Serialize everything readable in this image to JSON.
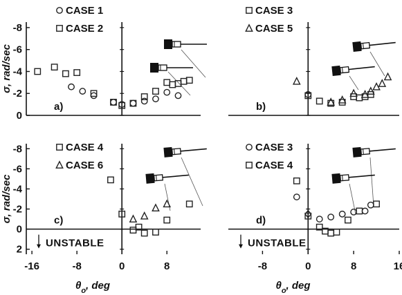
{
  "chart_data": [
    {
      "panel": "a)",
      "type": "scatter",
      "xlabel": "",
      "ylabel": "σ, rad/sec",
      "xticks": [],
      "yticks": [
        "-8",
        "-6",
        "-4",
        "-2",
        "0"
      ],
      "xlim": [
        -17,
        14
      ],
      "ylim": [
        0,
        -8.5
      ],
      "vline_x": 0,
      "legend": [
        "CASE 1",
        "CASE 2"
      ],
      "series": [
        {
          "name": "CASE 1",
          "marker": "circle",
          "x": [
            -9,
            -7,
            -5,
            -1.5,
            0,
            2,
            4,
            6,
            8,
            10
          ],
          "y": [
            -2.6,
            -2.2,
            -1.8,
            -1.2,
            -1.0,
            -1.1,
            -1.3,
            -1.5,
            -2.1,
            -1.8
          ]
        },
        {
          "name": "CASE 2",
          "marker": "square",
          "x": [
            -15,
            -12,
            -10,
            -8,
            -5,
            -1.5,
            0,
            2,
            4,
            6,
            8,
            9,
            10,
            11,
            12
          ],
          "y": [
            -4.0,
            -4.4,
            -3.8,
            -3.9,
            -2.0,
            -1.2,
            -0.9,
            -1.1,
            -1.7,
            -2.2,
            -3.0,
            -2.8,
            -2.9,
            -3.1,
            -3.2
          ]
        }
      ]
    },
    {
      "panel": "b)",
      "type": "scatter",
      "xlabel": "",
      "ylabel": "",
      "xticks": [],
      "yticks": [],
      "xlim": [
        -14,
        16
      ],
      "ylim": [
        0,
        -8.5
      ],
      "vline_x": 0,
      "legend": [
        "CASE 3",
        "CASE 5"
      ],
      "series": [
        {
          "name": "CASE 3",
          "marker": "square",
          "x": [
            0,
            2,
            4,
            6,
            8,
            9,
            10,
            11
          ],
          "y": [
            -1.8,
            -1.3,
            -1.1,
            -1.2,
            -1.7,
            -1.6,
            -1.7,
            -1.9
          ]
        },
        {
          "name": "CASE 5",
          "marker": "triangle",
          "x": [
            -2,
            4,
            6,
            8,
            10,
            11,
            12,
            13,
            14
          ],
          "y": [
            -3.1,
            -1.2,
            -1.4,
            -2.0,
            -1.9,
            -2.2,
            -2.6,
            -2.9,
            -3.5
          ]
        },
        {
          "name": "",
          "marker": "circle",
          "x": [
            0
          ],
          "y": [
            -1.9
          ]
        }
      ]
    },
    {
      "panel": "c)",
      "type": "scatter",
      "xlabel": "θ_o, deg",
      "ylabel": "σ, rad/sec",
      "xticks": [
        "-16",
        "-8",
        "0",
        "8"
      ],
      "yticks": [
        "-8",
        "-6",
        "-4",
        "-2",
        "0",
        "2"
      ],
      "xlim": [
        -17,
        14
      ],
      "ylim": [
        2.5,
        -8.5
      ],
      "vline_x": 0,
      "legend": [
        "CASE 4",
        "CASE 6"
      ],
      "annotation": "UNSTABLE",
      "series": [
        {
          "name": "CASE 4",
          "marker": "square",
          "x": [
            -2,
            0,
            2,
            3,
            4,
            6,
            8,
            12
          ],
          "y": [
            -4.9,
            -1.5,
            0.1,
            -0.2,
            0.4,
            0.3,
            -0.9,
            -2.5
          ]
        },
        {
          "name": "CASE 6",
          "marker": "triangle",
          "x": [
            2,
            4,
            6,
            8
          ],
          "y": [
            -1.0,
            -1.3,
            -2.1,
            -2.5
          ]
        }
      ]
    },
    {
      "panel": "d)",
      "type": "scatter",
      "xlabel": "θ_o, deg",
      "ylabel": "",
      "xticks": [
        "-8",
        "0",
        "8",
        "16"
      ],
      "yticks": [],
      "xlim": [
        -14,
        16
      ],
      "ylim": [
        2.5,
        -8.5
      ],
      "vline_x": 0,
      "legend": [
        "CASE 3",
        "CASE 4"
      ],
      "annotation": "UNSTABLE",
      "series": [
        {
          "name": "CASE 3",
          "marker": "circle",
          "x": [
            -2,
            2,
            4,
            6,
            8,
            10,
            11
          ],
          "y": [
            -3.2,
            -1.0,
            -1.2,
            -1.5,
            -1.7,
            -1.8,
            -2.4
          ]
        },
        {
          "name": "CASE 4",
          "marker": "square",
          "x": [
            -2,
            0,
            2,
            3,
            4,
            5,
            7,
            9,
            12
          ],
          "y": [
            -4.8,
            -1.3,
            -0.2,
            0.2,
            0.4,
            0.3,
            -0.9,
            -1.8,
            -2.5
          ]
        },
        {
          "name": "",
          "marker": "diamond",
          "x": [
            0
          ],
          "y": [
            -1.5
          ]
        }
      ]
    }
  ]
}
